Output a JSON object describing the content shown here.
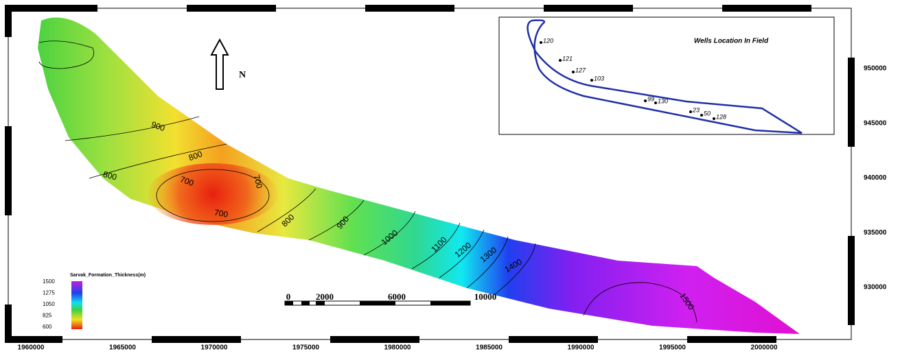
{
  "map": {
    "x_ticks": [
      "1960000",
      "1965000",
      "1970000",
      "1975000",
      "1980000",
      "1985000",
      "1990000",
      "1995000",
      "2000000"
    ],
    "y_ticks": [
      "930000",
      "935000",
      "940000",
      "945000",
      "950000"
    ],
    "north": "N",
    "contour_labels": [
      "900",
      "800",
      "800",
      "700",
      "700",
      "700",
      "800",
      "900",
      "1000",
      "1100",
      "1200",
      "1300",
      "1400",
      "1500"
    ],
    "legend": {
      "title": "Sarvak_Formation_Thickness(m)",
      "ticks": [
        "1500",
        "1275",
        "1050",
        "825",
        "600"
      ]
    },
    "scale_bar": [
      "0",
      "2000",
      "6000",
      "10000"
    ],
    "inset": {
      "title": "Wells Location In Field",
      "wells": [
        "120",
        "121",
        "127",
        "103",
        "99",
        "130",
        "23",
        "50",
        "128"
      ]
    }
  }
}
